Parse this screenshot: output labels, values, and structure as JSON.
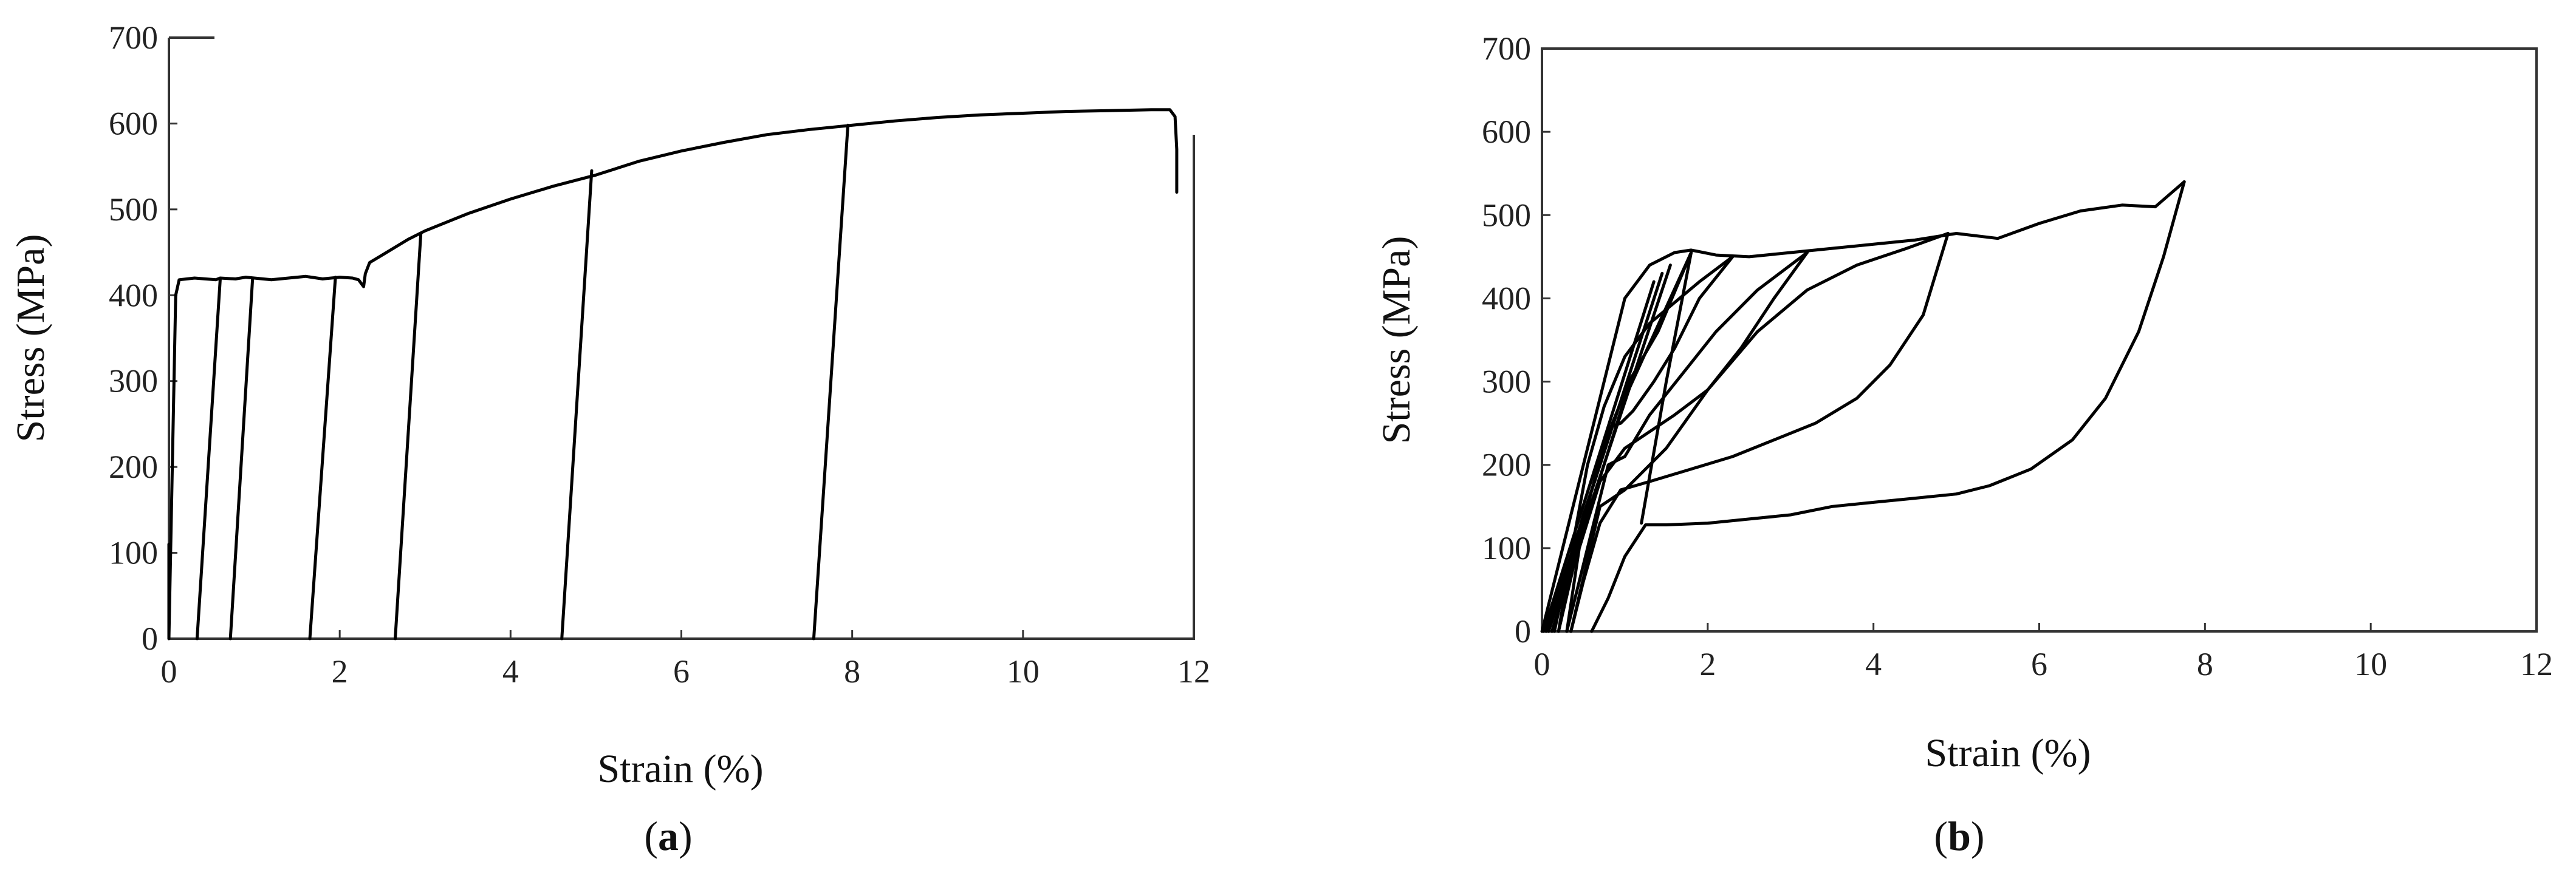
{
  "chart_data": [
    {
      "type": "line",
      "panel": "(a)",
      "panel_letter": "a",
      "xlabel": "Strain (%)",
      "ylabel": "Stress (MPa)",
      "xlim": [
        0,
        12
      ],
      "ylim": [
        0,
        700
      ],
      "xticks": [
        0,
        2,
        4,
        6,
        8,
        10,
        12
      ],
      "yticks": [
        0,
        100,
        200,
        300,
        400,
        500,
        600,
        700
      ],
      "grid": false,
      "series": [
        {
          "x": [
            0.0,
            0.08,
            0.12,
            0.3,
            0.55,
            0.6,
            0.78,
            0.9,
            1.0,
            1.2,
            1.4,
            1.6,
            1.8,
            2.0,
            2.15,
            2.22,
            2.28,
            2.3,
            2.35,
            2.55,
            2.8,
            3.0,
            3.5,
            4.0,
            4.5,
            5.0,
            5.5,
            6.0,
            6.5,
            7.0,
            7.5,
            8.0,
            8.5,
            9.0,
            9.5,
            10.0,
            10.5,
            11.0,
            11.5,
            11.72,
            11.78,
            11.8,
            11.8
          ],
          "y": [
            0,
            400,
            418,
            420,
            418,
            420,
            419,
            421,
            420,
            418,
            420,
            422,
            419,
            421,
            420,
            418,
            410,
            425,
            438,
            450,
            465,
            475,
            495,
            512,
            527,
            540,
            556,
            568,
            578,
            587,
            593,
            598,
            603,
            607,
            610,
            612,
            614,
            615,
            616,
            616,
            608,
            570,
            520
          ]
        },
        {
          "x": [
            0.0,
            0.0
          ],
          "y": [
            0,
            110
          ]
        },
        {
          "x": [
            0.33,
            0.6
          ],
          "y": [
            0,
            418
          ]
        },
        {
          "x": [
            0.72,
            0.98
          ],
          "y": [
            0,
            420
          ]
        },
        {
          "x": [
            1.65,
            1.95
          ],
          "y": [
            0,
            421
          ]
        },
        {
          "x": [
            2.65,
            2.95
          ],
          "y": [
            0,
            472
          ]
        },
        {
          "x": [
            4.6,
            4.95
          ],
          "y": [
            0,
            545
          ]
        },
        {
          "x": [
            7.55,
            7.95
          ],
          "y": [
            0,
            598
          ]
        }
      ]
    },
    {
      "type": "line",
      "panel": "(b)",
      "panel_letter": "b",
      "xlabel": "Strain (%)",
      "ylabel": "Stress (MPa)",
      "xlim": [
        0,
        12
      ],
      "ylim": [
        0,
        700
      ],
      "xticks": [
        0,
        2,
        4,
        6,
        8,
        10,
        12
      ],
      "yticks": [
        0,
        100,
        200,
        300,
        400,
        500,
        600,
        700
      ],
      "grid": false,
      "series": [
        {
          "x": [
            0.0,
            1.0,
            1.3,
            1.6,
            1.8,
            2.1,
            2.5,
            3.0,
            3.5,
            4.0,
            4.5,
            5.0,
            5.5,
            6.0,
            6.5,
            7.0,
            7.4,
            7.75
          ],
          "y": [
            0,
            400,
            440,
            455,
            458,
            452,
            450,
            455,
            460,
            465,
            470,
            478,
            472,
            490,
            505,
            512,
            510,
            540
          ]
        },
        {
          "x": [
            0.02,
            1.35
          ],
          "y": [
            0,
            420
          ]
        },
        {
          "x": [
            0.05,
            1.45
          ],
          "y": [
            0,
            430
          ]
        },
        {
          "x": [
            0.08,
            1.55
          ],
          "y": [
            0,
            440
          ]
        },
        {
          "x": [
            0.12,
            1.0,
            1.8
          ],
          "y": [
            0,
            280,
            455
          ]
        },
        {
          "x": [
            1.8,
            1.4,
            1.05,
            0.85,
            0.7,
            0.5,
            0.3,
            0.15
          ],
          "y": [
            455,
            360,
            300,
            250,
            200,
            140,
            70,
            0
          ]
        },
        {
          "x": [
            2.3,
            1.9,
            1.6,
            1.3,
            1.0,
            0.75,
            0.55,
            0.4,
            0.2
          ],
          "y": [
            450,
            420,
            395,
            370,
            330,
            270,
            200,
            120,
            0
          ]
        },
        {
          "x": [
            0.2,
            0.55,
            0.8,
            0.95,
            1.1,
            1.35,
            1.6,
            1.9,
            2.3
          ],
          "y": [
            0,
            150,
            245,
            250,
            265,
            300,
            340,
            400,
            450
          ]
        },
        {
          "x": [
            3.2,
            2.8,
            2.4,
            2.0,
            1.6,
            1.3,
            1.0,
            0.7,
            0.45,
            0.3
          ],
          "y": [
            455,
            400,
            340,
            290,
            260,
            240,
            220,
            180,
            100,
            0
          ]
        },
        {
          "x": [
            0.3,
            0.6,
            0.8,
            1.0,
            1.3,
            1.7,
            2.1,
            2.6,
            3.2
          ],
          "y": [
            0,
            120,
            200,
            210,
            260,
            310,
            360,
            410,
            455
          ]
        },
        {
          "x": [
            4.9,
            4.6,
            4.2,
            3.8,
            3.3,
            2.8,
            2.3,
            1.8,
            1.3,
            0.95,
            0.7,
            0.5,
            0.35
          ],
          "y": [
            478,
            380,
            320,
            280,
            250,
            230,
            210,
            195,
            180,
            170,
            130,
            60,
            0
          ]
        },
        {
          "x": [
            0.35,
            0.7,
            1.0,
            1.5,
            2.0,
            2.6,
            3.2,
            3.8,
            4.4,
            4.9
          ],
          "y": [
            0,
            150,
            170,
            220,
            290,
            360,
            410,
            440,
            460,
            478
          ]
        },
        {
          "x": [
            7.75,
            7.5,
            7.2,
            6.8,
            6.4,
            5.9,
            5.4,
            5.0,
            4.5,
            4.0,
            3.5,
            3.0,
            2.5,
            2.0,
            1.5,
            1.25,
            1.0,
            0.8,
            0.6
          ],
          "y": [
            540,
            450,
            360,
            280,
            230,
            195,
            175,
            165,
            160,
            155,
            150,
            140,
            135,
            130,
            128,
            128,
            90,
            40,
            0
          ]
        },
        {
          "x": [
            1.2,
            1.5,
            1.8
          ],
          "y": [
            130,
            300,
            455
          ]
        }
      ]
    }
  ]
}
